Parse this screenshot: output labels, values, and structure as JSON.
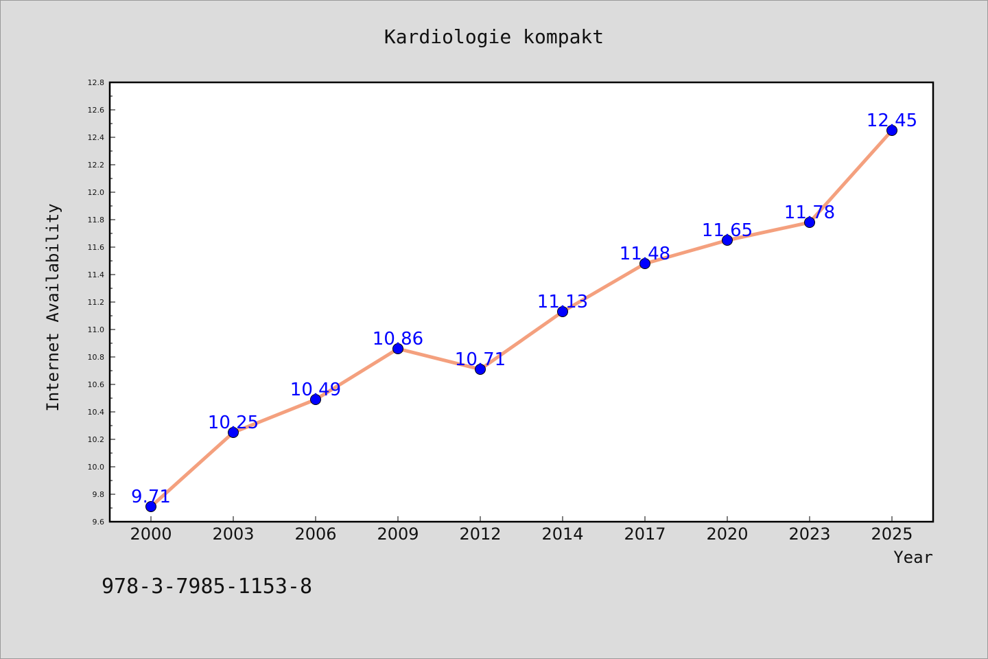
{
  "chart_data": {
    "type": "line",
    "title": "Kardiologie kompakt",
    "xlabel": "Year",
    "ylabel": "Internet Availability",
    "categories": [
      "2000",
      "2003",
      "2006",
      "2009",
      "2012",
      "2014",
      "2017",
      "2020",
      "2023",
      "2025"
    ],
    "values": [
      9.71,
      10.25,
      10.49,
      10.86,
      10.71,
      11.13,
      11.48,
      11.65,
      11.78,
      12.45
    ],
    "data_labels": [
      "9.71",
      "10.25",
      "10.49",
      "10.86",
      "10.71",
      "11.13",
      "11.48",
      "11.65",
      "11.78",
      "12.45"
    ],
    "ylim": [
      9.6,
      12.8
    ],
    "yticks": [
      "9.6",
      "9.8",
      "10.0",
      "10.2",
      "10.4",
      "10.6",
      "10.8",
      "11.0",
      "11.2",
      "11.4",
      "11.6",
      "11.8",
      "12.0",
      "12.2",
      "12.4",
      "12.6",
      "12.8"
    ],
    "grid": false,
    "legend": "none",
    "line_color": "#f4a07e",
    "marker_color": "#0000ff",
    "label_color": "#0000ff"
  },
  "annotation": {
    "isbn": "978-3-7985-1153-8"
  }
}
